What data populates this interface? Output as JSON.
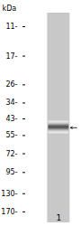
{
  "chart_data": {
    "type": "gel",
    "ylabel": "kDa",
    "categories": [
      "1"
    ],
    "values": [
      49
    ],
    "band_height": [
      9
    ],
    "arrow": [
      49
    ],
    "color": "#c8c8c8",
    "log": "y",
    "ylim": [
      200,
      9
    ],
    "yticks": [
      {
        "value": 170,
        "label": "170-"
      },
      {
        "value": 130,
        "label": "130-"
      },
      {
        "value": 95,
        "label": "95-"
      },
      {
        "value": 72,
        "label": "72-"
      },
      {
        "value": 55,
        "label": "55-"
      },
      {
        "value": 43,
        "label": "43-"
      },
      {
        "value": 34,
        "label": "34-"
      },
      {
        "value": 26,
        "label": "26-"
      },
      {
        "value": 17,
        "label": "17-"
      },
      {
        "value": 11,
        "label": "11-"
      }
    ],
    "grid": false
  }
}
